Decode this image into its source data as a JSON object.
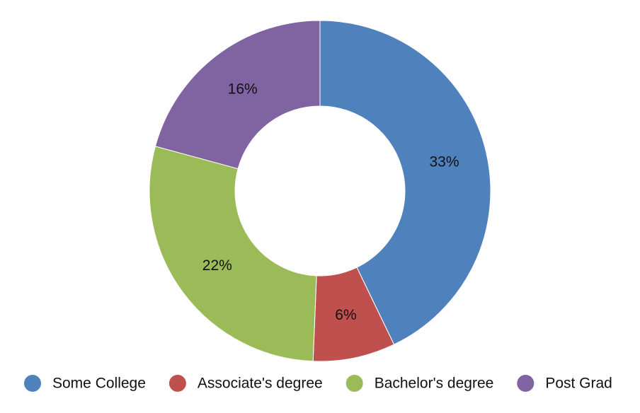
{
  "chart_data": {
    "type": "donut",
    "categories": [
      "Some College",
      "Associate's degree",
      "Bachelor's degree",
      "Post Grad"
    ],
    "values": [
      33,
      6,
      22,
      16
    ],
    "value_labels": [
      "33%",
      "6%",
      "22%",
      "16%"
    ],
    "colors": [
      "#4f81bd",
      "#c0504d",
      "#9bbb59",
      "#8064a2"
    ],
    "legend": "bottom"
  }
}
